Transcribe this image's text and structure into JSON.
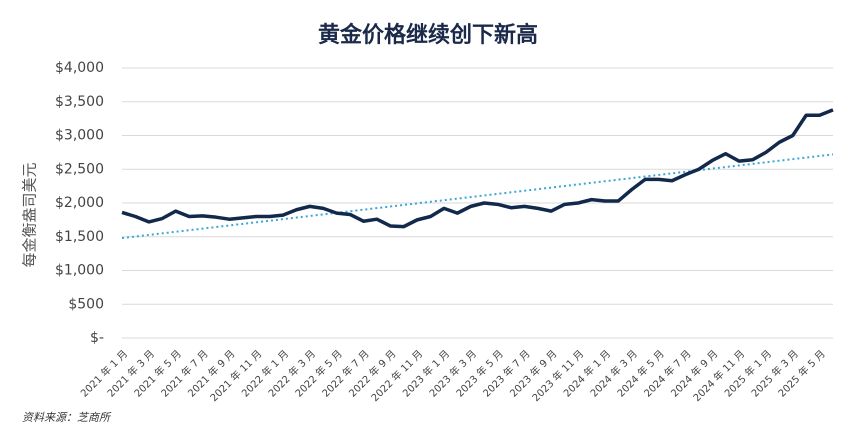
{
  "chart_data": {
    "type": "line",
    "title": "黄金价格继续创下新高",
    "y_label": "每金衡盎司美元",
    "source": "资料来源：芝商所",
    "categories": [
      "2021 年 1 月",
      null,
      "2021 年 3 月",
      null,
      "2021 年 5 月",
      null,
      "2021 年 7 月",
      null,
      "2021 年 9 月",
      null,
      "2021 年 11 月",
      null,
      "2022 年 1 月",
      null,
      "2022 年 3 月",
      null,
      "2022 年 5 月",
      null,
      "2022 年 7 月",
      null,
      "2022 年 9 月",
      null,
      "2022 年 11 月",
      null,
      "2023 年 1 月",
      null,
      "2023 年 3 月",
      null,
      "2023 年 5 月",
      null,
      "2023 年 7 月",
      null,
      "2023 年 9 月",
      null,
      "2023 年 11 月",
      null,
      "2024 年 1 月",
      null,
      "2024 年 3 月",
      null,
      "2024 年 5 月",
      null,
      "2024 年 7 月",
      null,
      "2024 年 9 月",
      null,
      "2024 年 11 月",
      null,
      "2025 年 1 月",
      null,
      "2025 年 3 月",
      null,
      "2025 年 5 月",
      null
    ],
    "series": [
      {
        "color": "#13294b",
        "values": [
          1860,
          1800,
          1720,
          1770,
          1880,
          1800,
          1810,
          1790,
          1760,
          1780,
          1800,
          1800,
          1820,
          1900,
          1950,
          1920,
          1850,
          1830,
          1730,
          1760,
          1660,
          1650,
          1750,
          1800,
          1920,
          1850,
          1950,
          2000,
          1980,
          1930,
          1950,
          1920,
          1880,
          1980,
          2000,
          2050,
          2030,
          2030,
          2200,
          2350,
          2350,
          2330,
          2420,
          2500,
          2630,
          2730,
          2620,
          2640,
          2750,
          2900,
          3000,
          3300,
          3300,
          3380
        ]
      }
    ],
    "trendline": {
      "color": "#3aa6d8",
      "values": [
        1480,
        2720
      ]
    },
    "ylim": [
      0,
      4000
    ],
    "yticks": [
      {
        "value": 0,
        "label": "$-"
      },
      {
        "value": 500,
        "label": "$500"
      },
      {
        "value": 1000,
        "label": "$1,000"
      },
      {
        "value": 1500,
        "label": "$1,500"
      },
      {
        "value": 2000,
        "label": "$2,000"
      },
      {
        "value": 2500,
        "label": "$2,500"
      },
      {
        "value": 3000,
        "label": "$3,000"
      },
      {
        "value": 3500,
        "label": "$3,500"
      },
      {
        "value": 4000,
        "label": "$4,000"
      }
    ],
    "grid": true
  }
}
